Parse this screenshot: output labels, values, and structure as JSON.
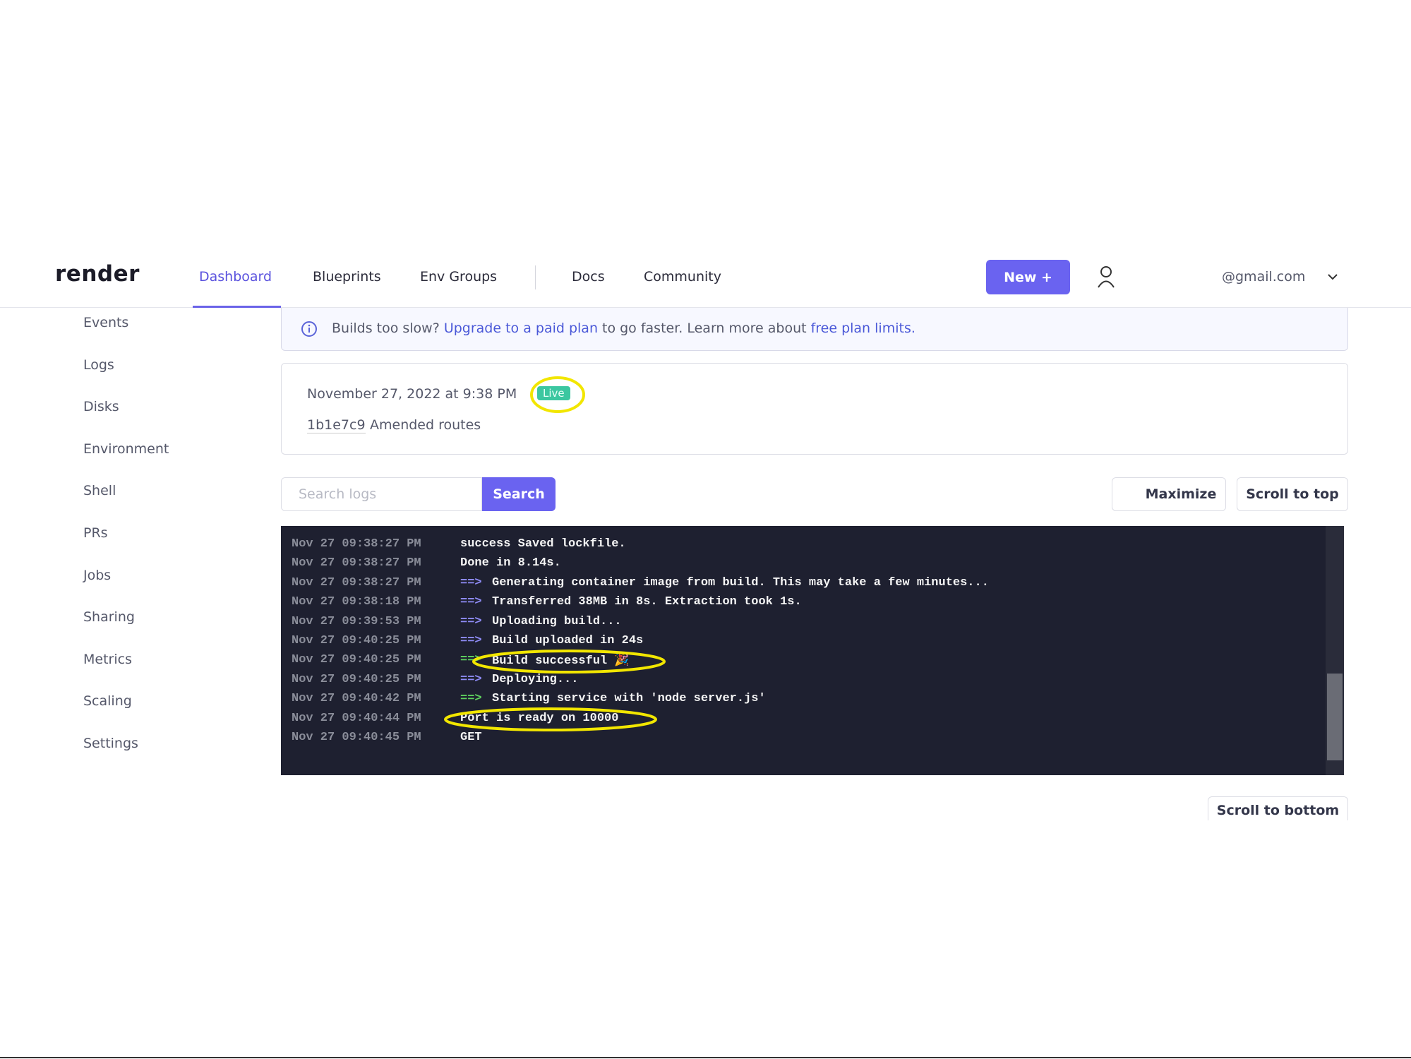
{
  "header": {
    "logo": "render",
    "nav": [
      "Dashboard",
      "Blueprints",
      "Env Groups"
    ],
    "links": [
      "Docs",
      "Community"
    ],
    "new_button": "New +",
    "email": "@gmail.com"
  },
  "sidebar": [
    "Events",
    "Logs",
    "Disks",
    "Environment",
    "Shell",
    "PRs",
    "Jobs",
    "Sharing",
    "Metrics",
    "Scaling",
    "Settings"
  ],
  "banner": {
    "lead": "Builds too slow?",
    "link1": "Upgrade to a paid plan",
    "mid": "to go faster. Learn more about",
    "link2": "free plan limits."
  },
  "deploy": {
    "date": "November 27, 2022 at 9:38 PM",
    "status": "Live",
    "commit": "1b1e7c9",
    "message": "Amended routes"
  },
  "search": {
    "placeholder": "Search logs",
    "button": "Search"
  },
  "buttons": {
    "maximize": "Maximize",
    "scroll_top": "Scroll to top",
    "scroll_bottom": "Scroll to bottom"
  },
  "logs": [
    {
      "time": "Nov 27 09:38:27 PM",
      "text": "success Saved lockfile."
    },
    {
      "time": "Nov 27 09:38:27 PM",
      "text": "Done in 8.14s."
    },
    {
      "time": "Nov 27 09:38:27 PM",
      "prefix": "==>",
      "text": "Generating container image from build. This may take a few minutes..."
    },
    {
      "time": "Nov 27 09:38:18 PM",
      "prefix": "==>",
      "text": "Transferred 38MB in 8s. Extraction took 1s."
    },
    {
      "time": "Nov 27 09:39:53 PM",
      "prefix": "==>",
      "text": "Uploading build..."
    },
    {
      "time": "Nov 27 09:40:25 PM",
      "prefix": "==>",
      "text": "Build uploaded in 24s"
    },
    {
      "time": "Nov 27 09:40:25 PM",
      "prefix": "==>",
      "text": "Build successful 🎉"
    },
    {
      "time": "Nov 27 09:40:25 PM",
      "prefix": "==>",
      "text": "Deploying..."
    },
    {
      "time": "Nov 27 09:40:42 PM",
      "prefix": "==>",
      "text": "Starting service with 'node server.js'"
    },
    {
      "time": "Nov 27 09:40:44 PM",
      "text": "Port is ready on 10000"
    },
    {
      "time": "Nov 27 09:40:45 PM",
      "text": "GET"
    }
  ]
}
